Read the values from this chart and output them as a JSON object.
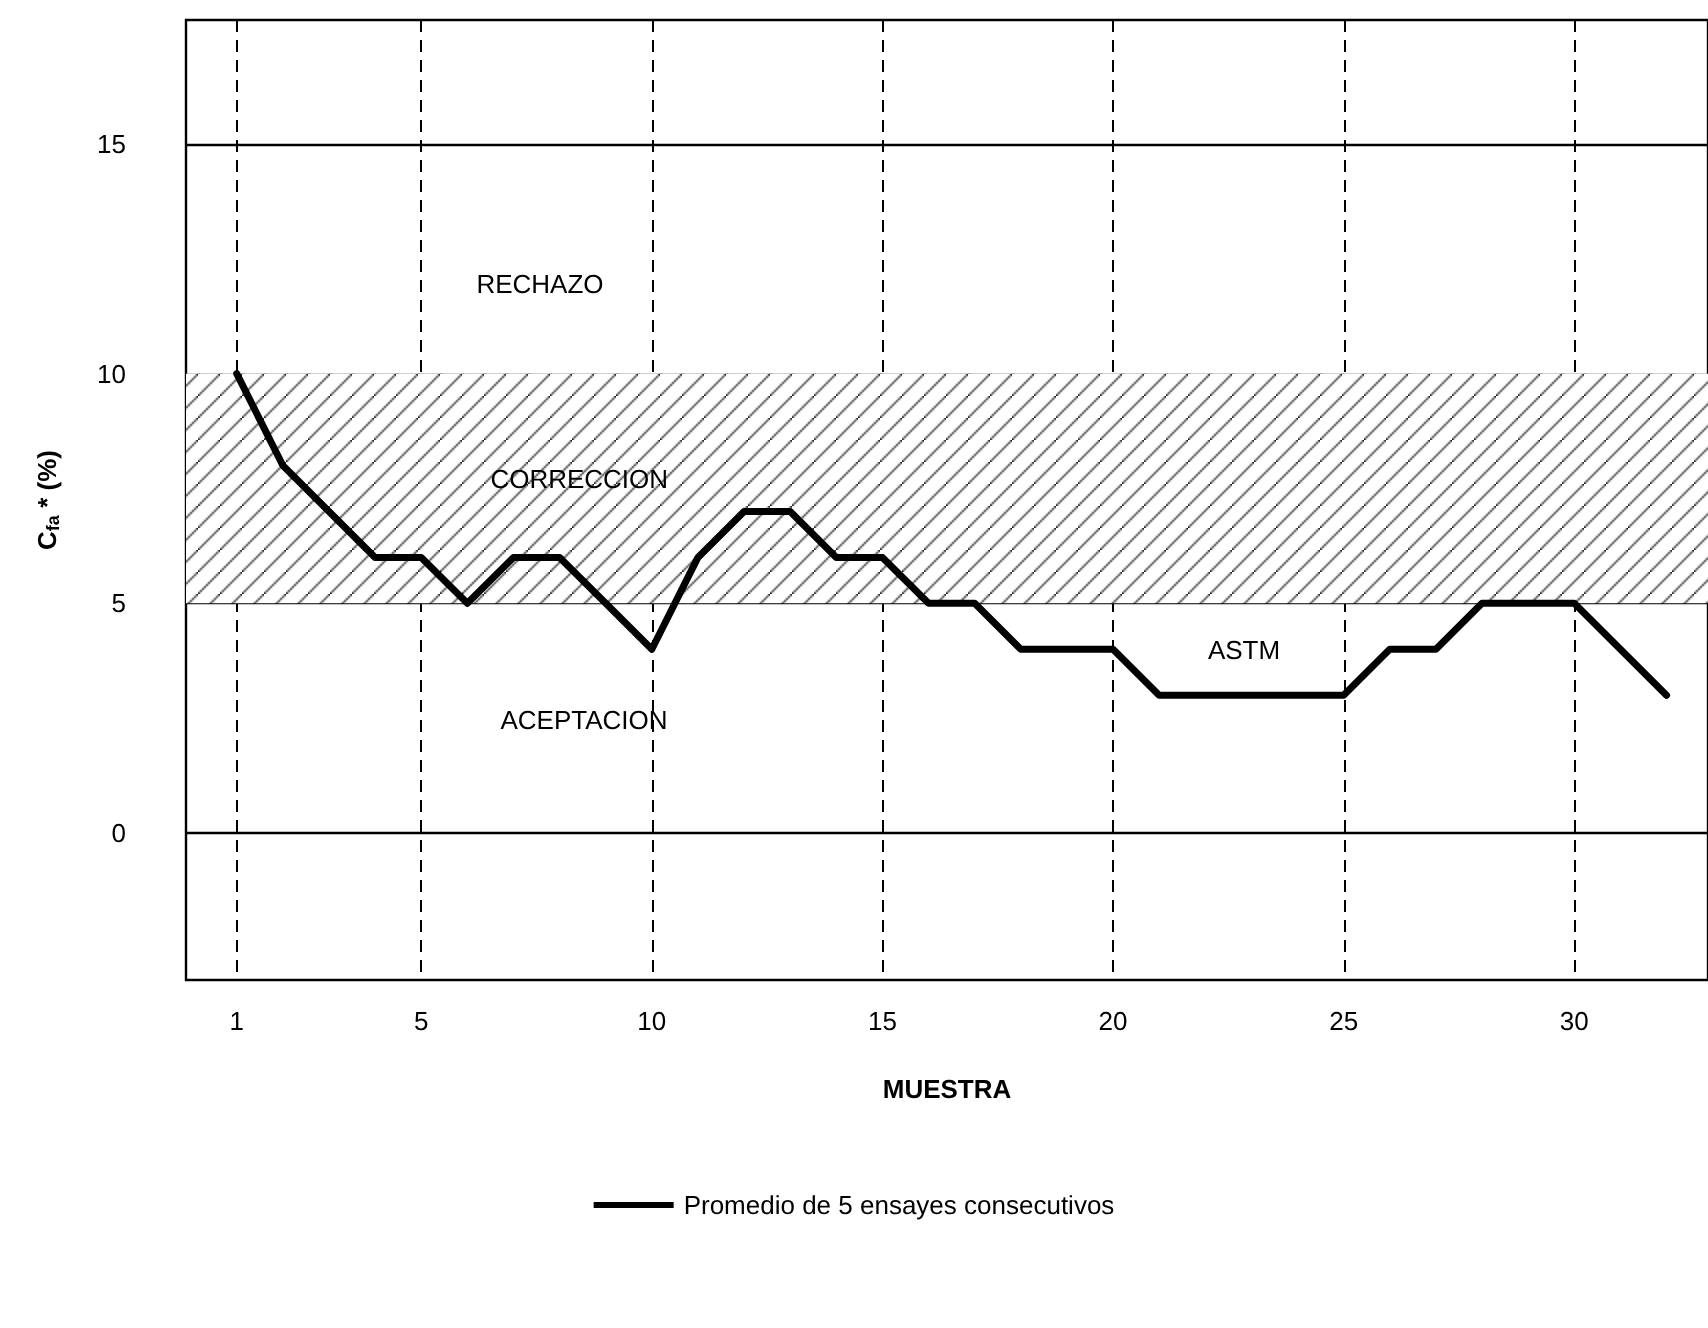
{
  "chart_data": {
    "type": "line",
    "xlabel": "MUESTRA",
    "ylabel": "C$_{fa}$ * (%)",
    "x": [
      1,
      2,
      3,
      4,
      5,
      6,
      7,
      8,
      9,
      10,
      11,
      12,
      13,
      14,
      15,
      16,
      17,
      18,
      19,
      20,
      21,
      22,
      23,
      24,
      25,
      26,
      27,
      28,
      29,
      30,
      31,
      32
    ],
    "series": [
      {
        "name": "Promedio de 5 ensayes consecutivos",
        "color": "#000000",
        "values": [
          10,
          8,
          7,
          6,
          6,
          5,
          6,
          6,
          5,
          4,
          6,
          7,
          7,
          6,
          6,
          5,
          5,
          4,
          4,
          4,
          3,
          3,
          3,
          3,
          3,
          4,
          4,
          5,
          5,
          5,
          4,
          3
        ]
      }
    ],
    "xlim": [
      -0.1,
      32.9
    ],
    "xticks": [
      1,
      5,
      10,
      15,
      20,
      25,
      30
    ],
    "ylim": [
      -3.2,
      17.7
    ],
    "yticks": [
      0,
      5,
      10,
      15
    ],
    "grid": true,
    "legend": "bottom",
    "marker": "none",
    "line_style": "solid",
    "bands": [
      {
        "axis": "y",
        "from": 5,
        "to": 10,
        "label": "CORRECCION"
      }
    ],
    "annotations": [
      "RECHAZO",
      "ACEPTACION",
      "ASTM"
    ]
  }
}
